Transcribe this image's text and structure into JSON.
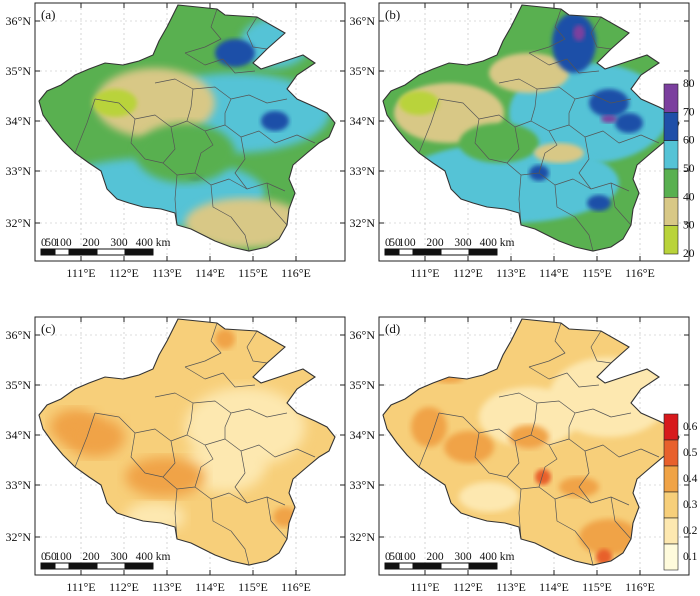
{
  "panels": [
    {
      "id": "a",
      "label": "(a)"
    },
    {
      "id": "b",
      "label": "(b)"
    },
    {
      "id": "c",
      "label": "(c)"
    },
    {
      "id": "d",
      "label": "(d)"
    }
  ],
  "axes": {
    "lon_ticks": [
      "111°E",
      "112°E",
      "113°E",
      "114°E",
      "115°E",
      "116°E"
    ],
    "lat_ticks": [
      "36°N",
      "35°N",
      "34°N",
      "33°N",
      "32°N"
    ]
  },
  "scalebar": {
    "labels": [
      "0",
      "50",
      "100",
      "200",
      "300",
      "400 km"
    ]
  },
  "colorbar_top": {
    "ticks": [
      "80",
      "70",
      "60",
      "50",
      "40",
      "30",
      "20"
    ],
    "colors": [
      "#7b3f9e",
      "#1f4fa8",
      "#55c3d6",
      "#59b050",
      "#d8c886",
      "#b9d33a"
    ]
  },
  "colorbar_bottom": {
    "ticks": [
      "0.6",
      "0.5",
      "0.4",
      "0.3",
      "0.2",
      "0.1"
    ],
    "colors": [
      "#d7191c",
      "#e8602c",
      "#f0a346",
      "#f7cf7a",
      "#fde8b0",
      "#fffbdc"
    ]
  }
}
